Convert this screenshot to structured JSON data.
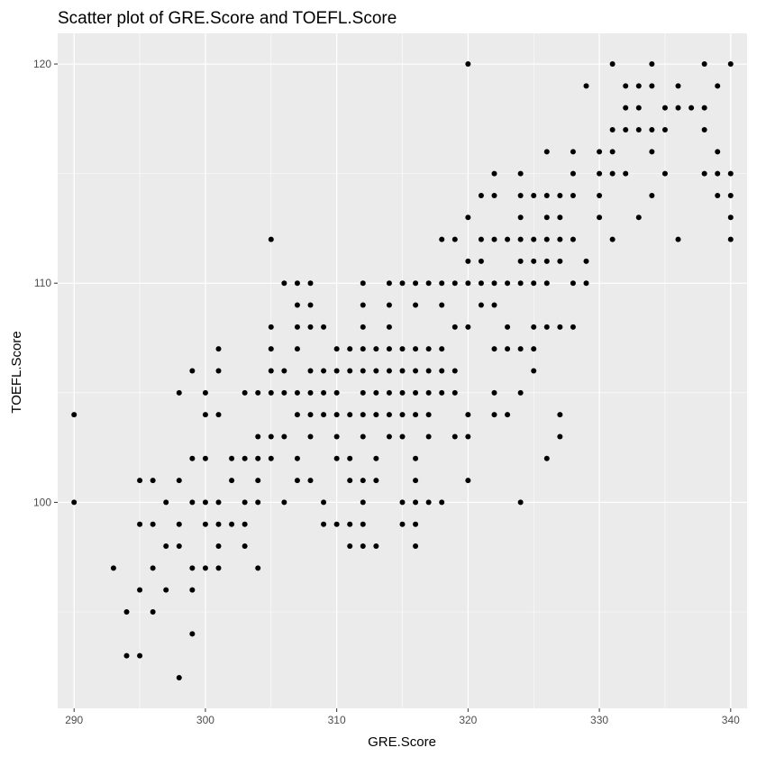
{
  "chart_data": {
    "type": "scatter",
    "title": "Scatter plot of GRE.Score and TOEFL.Score",
    "xlabel": "GRE.Score",
    "ylabel": "TOEFL.Score",
    "xlim": [
      288.75,
      341.25
    ],
    "ylim": [
      90.6,
      121.4
    ],
    "x_ticks": [
      290,
      300,
      310,
      320,
      330,
      340
    ],
    "y_ticks": [
      100,
      110,
      120
    ],
    "grid": true,
    "colors": {
      "panel": "#ebebeb",
      "grid": "#ffffff",
      "point": "#000000"
    },
    "points": [
      [
        290,
        104
      ],
      [
        290,
        100
      ],
      [
        293,
        97
      ],
      [
        294,
        95
      ],
      [
        294,
        93
      ],
      [
        295,
        101
      ],
      [
        295,
        99
      ],
      [
        295,
        96
      ],
      [
        295,
        93
      ],
      [
        296,
        101
      ],
      [
        296,
        99
      ],
      [
        296,
        97
      ],
      [
        296,
        95
      ],
      [
        297,
        100
      ],
      [
        297,
        98
      ],
      [
        297,
        96
      ],
      [
        298,
        105
      ],
      [
        298,
        101
      ],
      [
        298,
        99
      ],
      [
        298,
        98
      ],
      [
        298,
        92
      ],
      [
        299,
        106
      ],
      [
        299,
        102
      ],
      [
        299,
        100
      ],
      [
        299,
        97
      ],
      [
        299,
        96
      ],
      [
        299,
        94
      ],
      [
        300,
        105
      ],
      [
        300,
        104
      ],
      [
        300,
        102
      ],
      [
        300,
        100
      ],
      [
        300,
        99
      ],
      [
        300,
        97
      ],
      [
        301,
        107
      ],
      [
        301,
        106
      ],
      [
        301,
        104
      ],
      [
        301,
        100
      ],
      [
        301,
        99
      ],
      [
        301,
        98
      ],
      [
        301,
        97
      ],
      [
        302,
        102
      ],
      [
        302,
        101
      ],
      [
        302,
        99
      ],
      [
        303,
        105
      ],
      [
        303,
        102
      ],
      [
        303,
        100
      ],
      [
        303,
        99
      ],
      [
        303,
        98
      ],
      [
        304,
        105
      ],
      [
        304,
        103
      ],
      [
        304,
        102
      ],
      [
        304,
        101
      ],
      [
        304,
        100
      ],
      [
        304,
        97
      ],
      [
        305,
        112
      ],
      [
        305,
        108
      ],
      [
        305,
        107
      ],
      [
        305,
        106
      ],
      [
        305,
        105
      ],
      [
        305,
        103
      ],
      [
        305,
        102
      ],
      [
        306,
        110
      ],
      [
        306,
        106
      ],
      [
        306,
        105
      ],
      [
        306,
        103
      ],
      [
        306,
        100
      ],
      [
        307,
        110
      ],
      [
        307,
        109
      ],
      [
        307,
        108
      ],
      [
        307,
        107
      ],
      [
        307,
        105
      ],
      [
        307,
        104
      ],
      [
        307,
        102
      ],
      [
        307,
        101
      ],
      [
        308,
        110
      ],
      [
        308,
        109
      ],
      [
        308,
        108
      ],
      [
        308,
        106
      ],
      [
        308,
        105
      ],
      [
        308,
        104
      ],
      [
        308,
        103
      ],
      [
        308,
        101
      ],
      [
        309,
        108
      ],
      [
        309,
        106
      ],
      [
        309,
        105
      ],
      [
        309,
        104
      ],
      [
        309,
        100
      ],
      [
        309,
        99
      ],
      [
        310,
        107
      ],
      [
        310,
        106
      ],
      [
        310,
        105
      ],
      [
        310,
        104
      ],
      [
        310,
        103
      ],
      [
        310,
        102
      ],
      [
        310,
        99
      ],
      [
        311,
        107
      ],
      [
        311,
        106
      ],
      [
        311,
        104
      ],
      [
        311,
        102
      ],
      [
        311,
        101
      ],
      [
        311,
        99
      ],
      [
        311,
        98
      ],
      [
        312,
        110
      ],
      [
        312,
        109
      ],
      [
        312,
        108
      ],
      [
        312,
        107
      ],
      [
        312,
        106
      ],
      [
        312,
        105
      ],
      [
        312,
        104
      ],
      [
        312,
        103
      ],
      [
        312,
        101
      ],
      [
        312,
        100
      ],
      [
        312,
        99
      ],
      [
        312,
        98
      ],
      [
        313,
        107
      ],
      [
        313,
        106
      ],
      [
        313,
        105
      ],
      [
        313,
        104
      ],
      [
        313,
        102
      ],
      [
        313,
        101
      ],
      [
        313,
        98
      ],
      [
        314,
        110
      ],
      [
        314,
        109
      ],
      [
        314,
        108
      ],
      [
        314,
        107
      ],
      [
        314,
        106
      ],
      [
        314,
        105
      ],
      [
        314,
        104
      ],
      [
        314,
        103
      ],
      [
        315,
        110
      ],
      [
        315,
        107
      ],
      [
        315,
        106
      ],
      [
        315,
        105
      ],
      [
        315,
        104
      ],
      [
        315,
        103
      ],
      [
        315,
        100
      ],
      [
        315,
        99
      ],
      [
        316,
        110
      ],
      [
        316,
        109
      ],
      [
        316,
        107
      ],
      [
        316,
        106
      ],
      [
        316,
        105
      ],
      [
        316,
        104
      ],
      [
        316,
        102
      ],
      [
        316,
        101
      ],
      [
        316,
        100
      ],
      [
        316,
        99
      ],
      [
        316,
        98
      ],
      [
        317,
        110
      ],
      [
        317,
        107
      ],
      [
        317,
        106
      ],
      [
        317,
        105
      ],
      [
        317,
        104
      ],
      [
        317,
        103
      ],
      [
        317,
        100
      ],
      [
        318,
        112
      ],
      [
        318,
        110
      ],
      [
        318,
        109
      ],
      [
        318,
        107
      ],
      [
        318,
        106
      ],
      [
        318,
        105
      ],
      [
        318,
        100
      ],
      [
        319,
        112
      ],
      [
        319,
        110
      ],
      [
        319,
        108
      ],
      [
        319,
        106
      ],
      [
        319,
        105
      ],
      [
        319,
        103
      ],
      [
        320,
        120
      ],
      [
        320,
        113
      ],
      [
        320,
        111
      ],
      [
        320,
        110
      ],
      [
        320,
        108
      ],
      [
        320,
        104
      ],
      [
        320,
        103
      ],
      [
        320,
        101
      ],
      [
        321,
        114
      ],
      [
        321,
        112
      ],
      [
        321,
        111
      ],
      [
        321,
        110
      ],
      [
        321,
        109
      ],
      [
        322,
        115
      ],
      [
        322,
        114
      ],
      [
        322,
        112
      ],
      [
        322,
        110
      ],
      [
        322,
        109
      ],
      [
        322,
        107
      ],
      [
        322,
        105
      ],
      [
        322,
        104
      ],
      [
        323,
        112
      ],
      [
        323,
        110
      ],
      [
        323,
        108
      ],
      [
        323,
        107
      ],
      [
        323,
        104
      ],
      [
        324,
        115
      ],
      [
        324,
        114
      ],
      [
        324,
        113
      ],
      [
        324,
        112
      ],
      [
        324,
        111
      ],
      [
        324,
        110
      ],
      [
        324,
        107
      ],
      [
        324,
        105
      ],
      [
        324,
        100
      ],
      [
        325,
        114
      ],
      [
        325,
        112
      ],
      [
        325,
        111
      ],
      [
        325,
        110
      ],
      [
        325,
        108
      ],
      [
        325,
        107
      ],
      [
        325,
        106
      ],
      [
        326,
        116
      ],
      [
        326,
        114
      ],
      [
        326,
        113
      ],
      [
        326,
        112
      ],
      [
        326,
        111
      ],
      [
        326,
        110
      ],
      [
        326,
        108
      ],
      [
        326,
        102
      ],
      [
        327,
        114
      ],
      [
        327,
        113
      ],
      [
        327,
        112
      ],
      [
        327,
        111
      ],
      [
        327,
        108
      ],
      [
        327,
        104
      ],
      [
        327,
        103
      ],
      [
        328,
        116
      ],
      [
        328,
        115
      ],
      [
        328,
        114
      ],
      [
        328,
        112
      ],
      [
        328,
        110
      ],
      [
        328,
        108
      ],
      [
        329,
        119
      ],
      [
        329,
        111
      ],
      [
        329,
        110
      ],
      [
        330,
        116
      ],
      [
        330,
        115
      ],
      [
        330,
        114
      ],
      [
        330,
        113
      ],
      [
        331,
        120
      ],
      [
        331,
        117
      ],
      [
        331,
        116
      ],
      [
        331,
        115
      ],
      [
        331,
        112
      ],
      [
        332,
        119
      ],
      [
        332,
        118
      ],
      [
        332,
        117
      ],
      [
        332,
        115
      ],
      [
        333,
        119
      ],
      [
        333,
        118
      ],
      [
        333,
        117
      ],
      [
        333,
        113
      ],
      [
        334,
        120
      ],
      [
        334,
        119
      ],
      [
        334,
        117
      ],
      [
        334,
        116
      ],
      [
        334,
        114
      ],
      [
        335,
        118
      ],
      [
        335,
        117
      ],
      [
        335,
        115
      ],
      [
        336,
        119
      ],
      [
        336,
        118
      ],
      [
        336,
        112
      ],
      [
        337,
        118
      ],
      [
        338,
        120
      ],
      [
        338,
        118
      ],
      [
        338,
        117
      ],
      [
        338,
        115
      ],
      [
        339,
        119
      ],
      [
        339,
        116
      ],
      [
        339,
        115
      ],
      [
        339,
        114
      ],
      [
        340,
        120
      ],
      [
        340,
        115
      ],
      [
        340,
        114
      ],
      [
        340,
        113
      ],
      [
        340,
        112
      ]
    ]
  }
}
